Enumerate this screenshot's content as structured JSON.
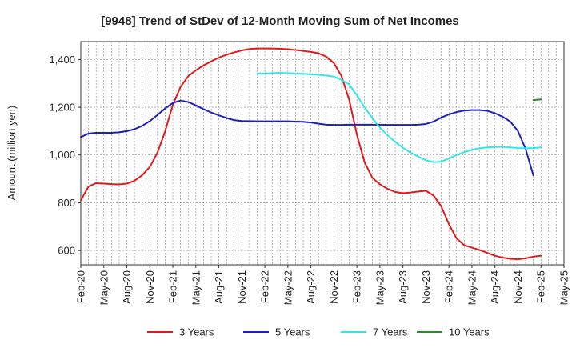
{
  "chart_data": {
    "type": "line",
    "title": "[9948]  Trend of StDev of 12-Month Moving Sum of Net Incomes",
    "xlabel": "",
    "ylabel": "Amount (million yen)",
    "ylim": [
      540,
      1475
    ],
    "yticks": [
      600,
      800,
      1000,
      1200,
      1400
    ],
    "ytick_labels": [
      "600",
      "800",
      "1,000",
      "1,200",
      "1,400"
    ],
    "xlim": [
      "2020-02",
      "2025-05"
    ],
    "xticks": [
      "Feb-20",
      "May-20",
      "Aug-20",
      "Nov-20",
      "Feb-21",
      "May-21",
      "Aug-21",
      "Nov-21",
      "Feb-22",
      "May-22",
      "Aug-22",
      "Nov-22",
      "Feb-23",
      "May-23",
      "Aug-23",
      "Nov-23",
      "Feb-24",
      "May-24",
      "Aug-24",
      "Nov-24",
      "Feb-25",
      "May-25"
    ],
    "grid": true,
    "legend_position": "bottom",
    "series": [
      {
        "name": "3 Years",
        "color": "#e31a1c",
        "start": "2020-02",
        "values": [
          810,
          868,
          882,
          880,
          878,
          877,
          880,
          892,
          915,
          950,
          1010,
          1100,
          1210,
          1285,
          1330,
          1355,
          1375,
          1392,
          1408,
          1420,
          1430,
          1438,
          1444,
          1446,
          1446,
          1446,
          1445,
          1443,
          1440,
          1436,
          1432,
          1426,
          1412,
          1385,
          1330,
          1230,
          1085,
          970,
          905,
          877,
          858,
          845,
          840,
          843,
          847,
          850,
          830,
          785,
          710,
          650,
          622,
          612,
          602,
          590,
          578,
          570,
          565,
          563,
          567,
          574,
          578
        ]
      },
      {
        "name": "5 Years",
        "color": "#1f1fbf",
        "start": "2020-02",
        "values": [
          1075,
          1090,
          1093,
          1093,
          1093,
          1095,
          1100,
          1108,
          1122,
          1142,
          1168,
          1195,
          1218,
          1228,
          1222,
          1208,
          1192,
          1178,
          1166,
          1155,
          1146,
          1142,
          1142,
          1141,
          1141,
          1141,
          1141,
          1141,
          1140,
          1139,
          1136,
          1131,
          1127,
          1126,
          1126,
          1127,
          1127,
          1127,
          1127,
          1127,
          1126,
          1126,
          1126,
          1126,
          1127,
          1130,
          1140,
          1157,
          1170,
          1180,
          1186,
          1188,
          1188,
          1185,
          1175,
          1160,
          1140,
          1100,
          1025,
          915
        ]
      },
      {
        "name": "7 Years",
        "color": "#33e6e6",
        "start": "2022-01",
        "values": [
          1341,
          1342,
          1343,
          1344,
          1343,
          1341,
          1340,
          1338,
          1336,
          1333,
          1328,
          1315,
          1295,
          1250,
          1200,
          1155,
          1115,
          1082,
          1055,
          1030,
          1010,
          993,
          978,
          970,
          972,
          985,
          1000,
          1012,
          1022,
          1028,
          1032,
          1034,
          1034,
          1032,
          1029,
          1028,
          1029,
          1032
        ]
      },
      {
        "name": "10 Years",
        "color": "#2a8a2a",
        "start": "2025-01",
        "values": [
          1230,
          1233
        ]
      }
    ]
  }
}
